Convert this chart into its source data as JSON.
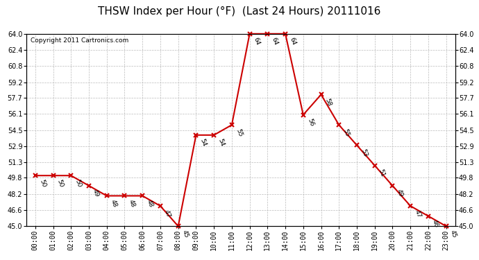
{
  "title": "THSW Index per Hour (°F)  (Last 24 Hours) 20111016",
  "copyright": "Copyright 2011 Cartronics.com",
  "hours": [
    "00:00",
    "01:00",
    "02:00",
    "03:00",
    "04:00",
    "05:00",
    "06:00",
    "07:00",
    "08:00",
    "09:00",
    "10:00",
    "11:00",
    "12:00",
    "13:00",
    "14:00",
    "15:00",
    "16:00",
    "17:00",
    "18:00",
    "19:00",
    "20:00",
    "21:00",
    "22:00",
    "23:00"
  ],
  "values": [
    50,
    50,
    50,
    49,
    48,
    48,
    48,
    47,
    45,
    54,
    54,
    55,
    64,
    64,
    64,
    56,
    58,
    55,
    53,
    51,
    49,
    47,
    46,
    45
  ],
  "line_color": "#cc0000",
  "marker_color": "#cc0000",
  "bg_color": "#ffffff",
  "grid_color": "#bbbbbb",
  "ylim_min": 45.0,
  "ylim_max": 64.0,
  "ytick_values": [
    45.0,
    46.6,
    48.2,
    49.8,
    51.3,
    52.9,
    54.5,
    56.1,
    57.7,
    59.2,
    60.8,
    62.4,
    64.0
  ],
  "ytick_labels": [
    "45.0",
    "46.6",
    "48.2",
    "49.8",
    "51.3",
    "52.9",
    "54.5",
    "56.1",
    "57.7",
    "59.2",
    "60.8",
    "62.4",
    "64.0"
  ],
  "title_fontsize": 11,
  "copyright_fontsize": 6.5,
  "tick_fontsize": 7,
  "label_fontsize": 6.5
}
